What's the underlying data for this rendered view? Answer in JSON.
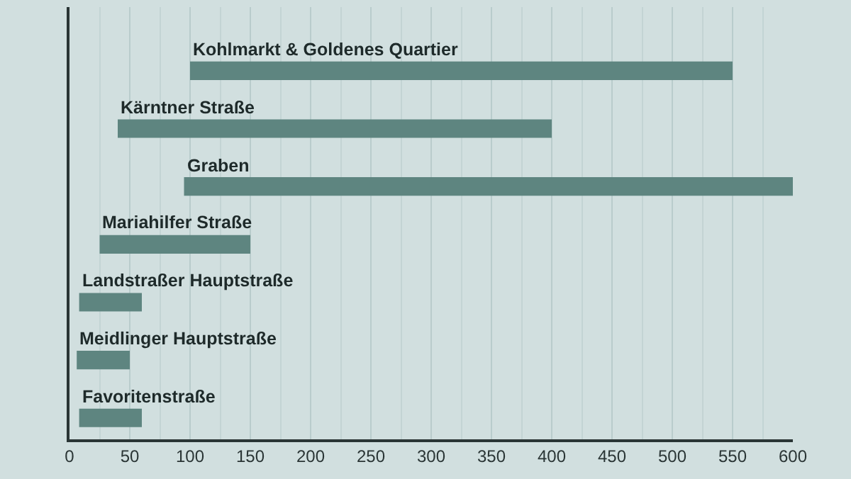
{
  "chart_data": {
    "type": "bar",
    "orientation": "horizontal",
    "categories": [
      "Kohlmarkt & Goldenes Quartier",
      "Kärntner Straße",
      "Graben",
      "Mariahilfer Straße",
      "Landstraßer Hauptstraße",
      "Meidlinger Hauptstraße",
      "Favoritenstraße"
    ],
    "base": [
      100,
      40,
      95,
      25,
      8,
      6,
      8
    ],
    "values": [
      450,
      360,
      505,
      125,
      52,
      44,
      52
    ],
    "color": "#5e8580",
    "xlim": [
      0,
      600
    ],
    "xticks": [
      0,
      50,
      100,
      150,
      200,
      250,
      300,
      350,
      400,
      450,
      500,
      550,
      600
    ],
    "grid": "x",
    "tick_labels": "x"
  }
}
